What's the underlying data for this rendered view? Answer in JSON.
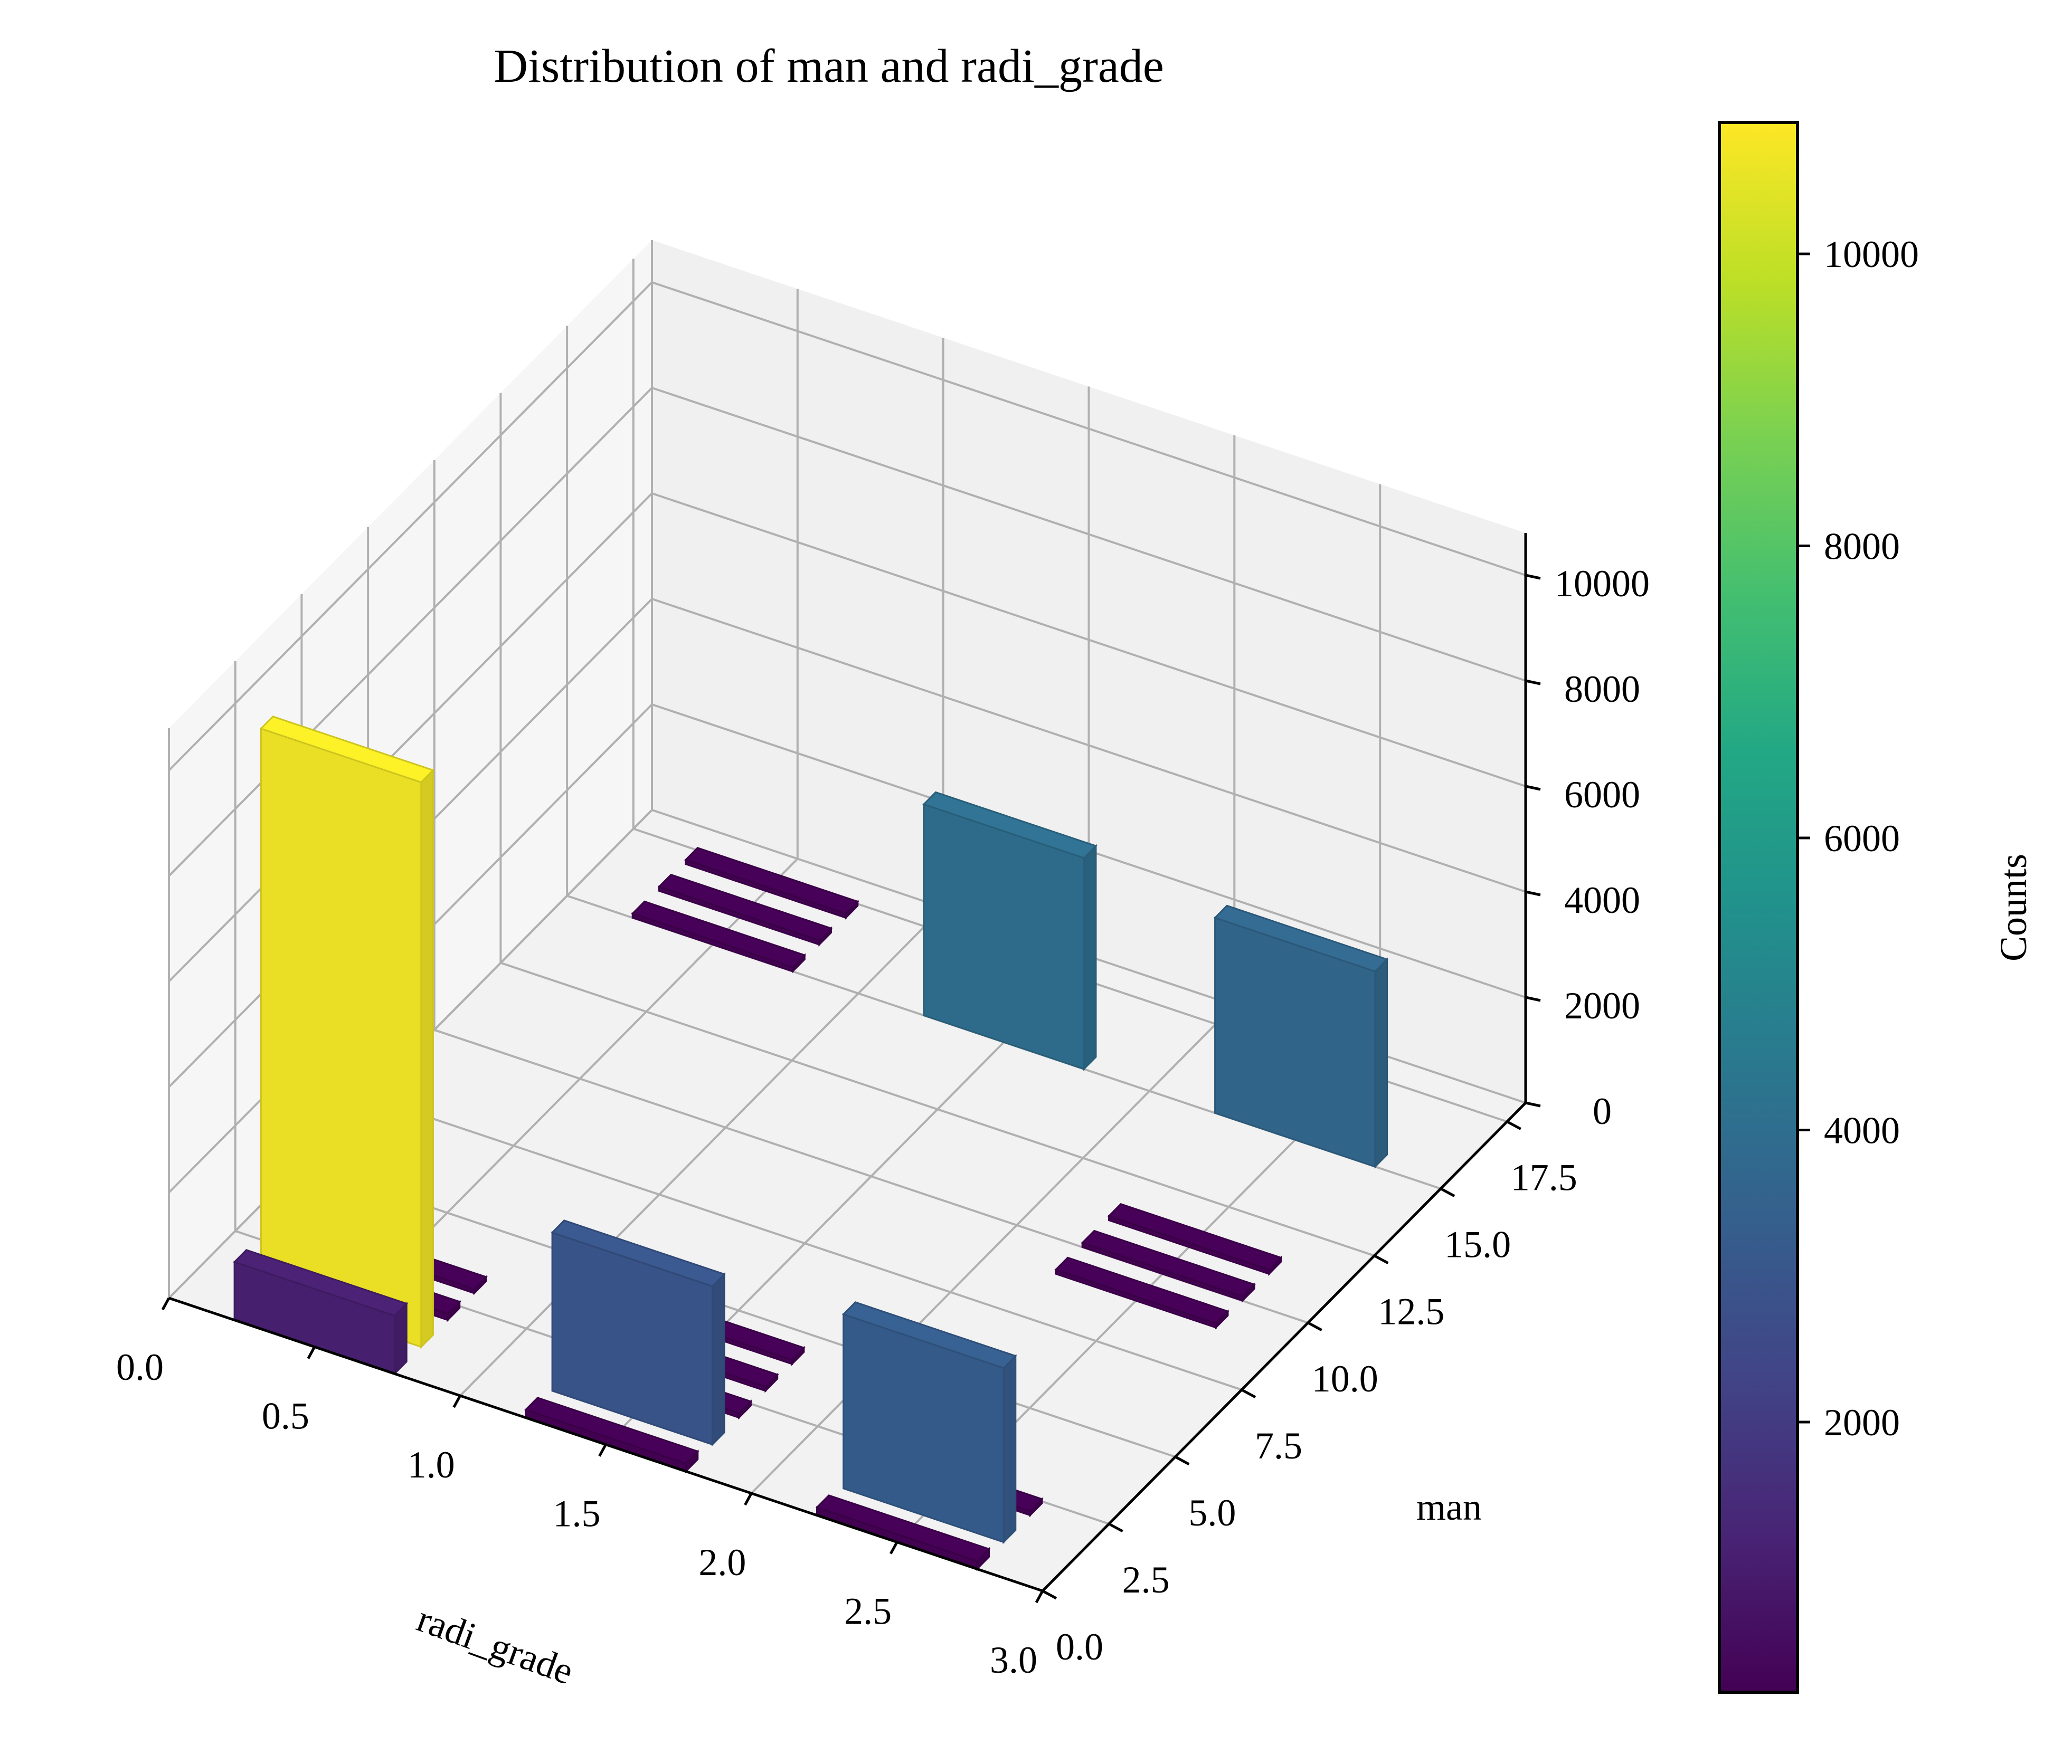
{
  "chart_data": {
    "type": "bar3d",
    "title": "Distribution of man and radi_grade",
    "xlabel": "radi_grade",
    "ylabel": "man",
    "zlabel": "",
    "xlim": [
      0,
      3.0
    ],
    "ylim": [
      0,
      18.2
    ],
    "zlim": [
      0,
      10800
    ],
    "xticks": [
      "0.0",
      "0.5",
      "1.0",
      "1.5",
      "2.0",
      "2.5",
      "3.0"
    ],
    "yticks": [
      "0.0",
      "2.5",
      "5.0",
      "7.5",
      "10.0",
      "12.5",
      "15.0",
      "17.5"
    ],
    "zticks": [
      "0",
      "2000",
      "4000",
      "6000",
      "8000",
      "10000"
    ],
    "grid": true,
    "colormap": "viridis",
    "colorbar": {
      "label": "Counts",
      "range": [
        150,
        10900
      ],
      "ticks": [
        "2000",
        "4000",
        "6000",
        "8000",
        "10000"
      ]
    },
    "bars": [
      {
        "x": 0.5,
        "y": 0,
        "z": 1100
      },
      {
        "x": 0.5,
        "y": 1,
        "z": 10700
      },
      {
        "x": 0.5,
        "y": 2,
        "z": 120
      },
      {
        "x": 0.5,
        "y": 3,
        "z": 80
      },
      {
        "x": 0.5,
        "y": 15,
        "z": 80
      },
      {
        "x": 0.5,
        "y": 16,
        "z": 80
      },
      {
        "x": 0.5,
        "y": 17,
        "z": 80
      },
      {
        "x": 1.5,
        "y": 0,
        "z": 150
      },
      {
        "x": 1.5,
        "y": 1,
        "z": 3000
      },
      {
        "x": 1.5,
        "y": 2,
        "z": 80
      },
      {
        "x": 1.5,
        "y": 3,
        "z": 80
      },
      {
        "x": 1.5,
        "y": 4,
        "z": 80
      },
      {
        "x": 1.5,
        "y": 15,
        "z": 4000
      },
      {
        "x": 2.5,
        "y": 0,
        "z": 150
      },
      {
        "x": 2.5,
        "y": 1,
        "z": 3300
      },
      {
        "x": 2.5,
        "y": 2,
        "z": 80
      },
      {
        "x": 2.5,
        "y": 9,
        "z": 80
      },
      {
        "x": 2.5,
        "y": 10,
        "z": 80
      },
      {
        "x": 2.5,
        "y": 11,
        "z": 80
      },
      {
        "x": 2.5,
        "y": 15,
        "z": 3700
      }
    ]
  }
}
